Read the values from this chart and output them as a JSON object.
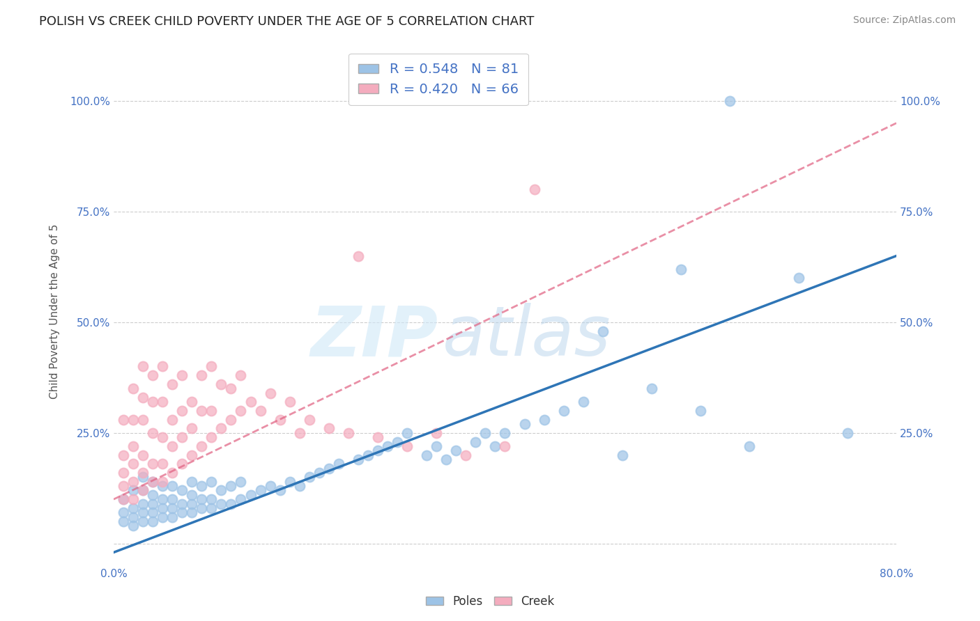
{
  "title": "POLISH VS CREEK CHILD POVERTY UNDER THE AGE OF 5 CORRELATION CHART",
  "source_text": "Source: ZipAtlas.com",
  "ylabel": "Child Poverty Under the Age of 5",
  "xlim": [
    0.0,
    0.8
  ],
  "ylim": [
    -0.05,
    1.1
  ],
  "xticks": [
    0.0,
    0.1,
    0.2,
    0.3,
    0.4,
    0.5,
    0.6,
    0.7,
    0.8
  ],
  "xticklabels": [
    "0.0%",
    "",
    "",
    "",
    "",
    "",
    "",
    "",
    "80.0%"
  ],
  "yticks": [
    0.0,
    0.25,
    0.5,
    0.75,
    1.0
  ],
  "yticklabels": [
    "",
    "25.0%",
    "50.0%",
    "75.0%",
    "100.0%"
  ],
  "poles_color": "#9DC3E6",
  "creek_color": "#F4ACBE",
  "poles_line_color": "#2E75B6",
  "creek_line_color": "#E06080",
  "R_poles": 0.548,
  "N_poles": 81,
  "R_creek": 0.42,
  "N_creek": 66,
  "watermark": "ZIPatlas",
  "watermark_color": "#C8DCF0",
  "background_color": "#FFFFFF",
  "grid_color": "#CCCCCC",
  "poles_x": [
    0.01,
    0.01,
    0.01,
    0.02,
    0.02,
    0.02,
    0.02,
    0.03,
    0.03,
    0.03,
    0.03,
    0.03,
    0.04,
    0.04,
    0.04,
    0.04,
    0.04,
    0.05,
    0.05,
    0.05,
    0.05,
    0.06,
    0.06,
    0.06,
    0.06,
    0.07,
    0.07,
    0.07,
    0.08,
    0.08,
    0.08,
    0.08,
    0.09,
    0.09,
    0.09,
    0.1,
    0.1,
    0.1,
    0.11,
    0.11,
    0.12,
    0.12,
    0.13,
    0.13,
    0.14,
    0.15,
    0.16,
    0.17,
    0.18,
    0.19,
    0.2,
    0.21,
    0.22,
    0.23,
    0.25,
    0.26,
    0.27,
    0.28,
    0.29,
    0.3,
    0.32,
    0.33,
    0.34,
    0.35,
    0.37,
    0.38,
    0.39,
    0.4,
    0.42,
    0.44,
    0.46,
    0.48,
    0.5,
    0.52,
    0.55,
    0.58,
    0.6,
    0.63,
    0.65,
    0.7,
    0.75
  ],
  "poles_y": [
    0.05,
    0.07,
    0.1,
    0.04,
    0.06,
    0.08,
    0.12,
    0.05,
    0.07,
    0.09,
    0.12,
    0.15,
    0.05,
    0.07,
    0.09,
    0.11,
    0.14,
    0.06,
    0.08,
    0.1,
    0.13,
    0.06,
    0.08,
    0.1,
    0.13,
    0.07,
    0.09,
    0.12,
    0.07,
    0.09,
    0.11,
    0.14,
    0.08,
    0.1,
    0.13,
    0.08,
    0.1,
    0.14,
    0.09,
    0.12,
    0.09,
    0.13,
    0.1,
    0.14,
    0.11,
    0.12,
    0.13,
    0.12,
    0.14,
    0.13,
    0.15,
    0.16,
    0.17,
    0.18,
    0.19,
    0.2,
    0.21,
    0.22,
    0.23,
    0.25,
    0.2,
    0.22,
    0.19,
    0.21,
    0.23,
    0.25,
    0.22,
    0.25,
    0.27,
    0.28,
    0.3,
    0.32,
    0.48,
    0.2,
    0.35,
    0.62,
    0.3,
    1.0,
    0.22,
    0.6,
    0.25
  ],
  "creek_x": [
    0.01,
    0.01,
    0.01,
    0.01,
    0.01,
    0.02,
    0.02,
    0.02,
    0.02,
    0.02,
    0.02,
    0.03,
    0.03,
    0.03,
    0.03,
    0.03,
    0.03,
    0.04,
    0.04,
    0.04,
    0.04,
    0.04,
    0.05,
    0.05,
    0.05,
    0.05,
    0.05,
    0.06,
    0.06,
    0.06,
    0.06,
    0.07,
    0.07,
    0.07,
    0.07,
    0.08,
    0.08,
    0.08,
    0.09,
    0.09,
    0.09,
    0.1,
    0.1,
    0.1,
    0.11,
    0.11,
    0.12,
    0.12,
    0.13,
    0.13,
    0.14,
    0.15,
    0.16,
    0.17,
    0.18,
    0.19,
    0.2,
    0.22,
    0.24,
    0.25,
    0.27,
    0.3,
    0.33,
    0.36,
    0.4,
    0.43
  ],
  "creek_y": [
    0.1,
    0.13,
    0.16,
    0.2,
    0.28,
    0.1,
    0.14,
    0.18,
    0.22,
    0.28,
    0.35,
    0.12,
    0.16,
    0.2,
    0.28,
    0.33,
    0.4,
    0.14,
    0.18,
    0.25,
    0.32,
    0.38,
    0.14,
    0.18,
    0.24,
    0.32,
    0.4,
    0.16,
    0.22,
    0.28,
    0.36,
    0.18,
    0.24,
    0.3,
    0.38,
    0.2,
    0.26,
    0.32,
    0.22,
    0.3,
    0.38,
    0.24,
    0.3,
    0.4,
    0.26,
    0.36,
    0.28,
    0.35,
    0.3,
    0.38,
    0.32,
    0.3,
    0.34,
    0.28,
    0.32,
    0.25,
    0.28,
    0.26,
    0.25,
    0.65,
    0.24,
    0.22,
    0.25,
    0.2,
    0.22,
    0.8
  ],
  "poles_line_x0": 0.0,
  "poles_line_y0": -0.02,
  "poles_line_x1": 0.8,
  "poles_line_y1": 0.65,
  "creek_line_x0": 0.0,
  "creek_line_y0": 0.1,
  "creek_line_x1": 0.8,
  "creek_line_y1": 0.95
}
